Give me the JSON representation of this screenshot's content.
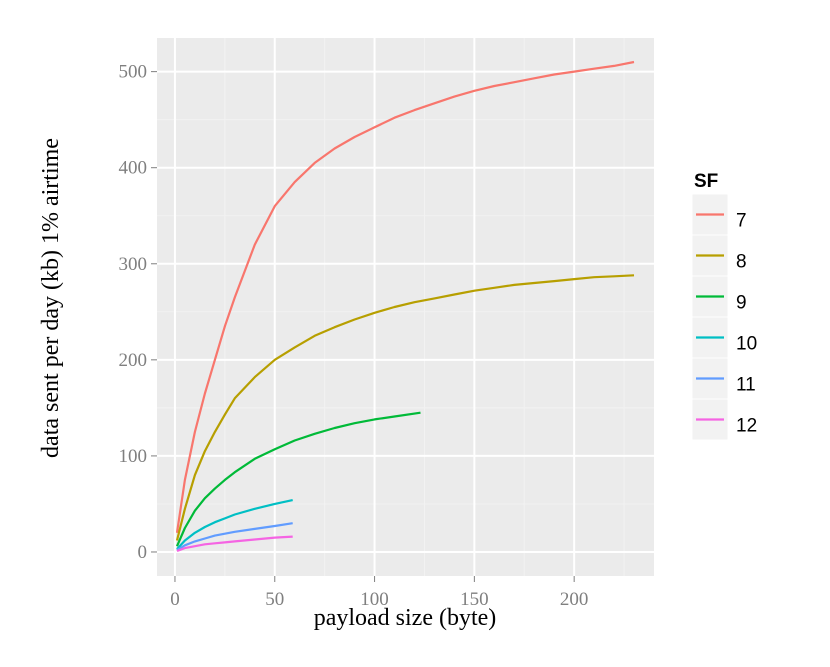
{
  "chart_data": {
    "type": "line",
    "title": "",
    "xlabel": "payload size (byte)",
    "ylabel": "data sent per day (kb) 1% airtime",
    "xlim": [
      -9,
      240
    ],
    "ylim": [
      -25,
      535
    ],
    "x_ticks": [
      0,
      50,
      100,
      150,
      200
    ],
    "y_ticks": [
      0,
      100,
      200,
      300,
      400,
      500
    ],
    "x_tick_labels": [
      "0",
      "50",
      "100",
      "150",
      "200"
    ],
    "y_tick_labels": [
      "0",
      "100",
      "200",
      "300",
      "400",
      "500"
    ],
    "grid": true,
    "legend": {
      "title": "SF",
      "position": "right"
    },
    "series": [
      {
        "name": "7",
        "color": "#F8766D",
        "x": [
          1,
          5,
          10,
          15,
          20,
          25,
          30,
          40,
          50,
          60,
          70,
          80,
          90,
          100,
          110,
          120,
          130,
          140,
          150,
          160,
          170,
          180,
          190,
          200,
          210,
          220,
          230
        ],
        "y": [
          20,
          75,
          125,
          165,
          200,
          235,
          265,
          320,
          360,
          385,
          405,
          420,
          432,
          442,
          452,
          460,
          467,
          474,
          480,
          485,
          489,
          493,
          497,
          500,
          503,
          506,
          510
        ]
      },
      {
        "name": "8",
        "color": "#B79F00",
        "x": [
          1,
          5,
          10,
          15,
          20,
          25,
          30,
          40,
          50,
          60,
          70,
          80,
          90,
          100,
          110,
          120,
          130,
          140,
          150,
          160,
          170,
          180,
          190,
          200,
          210,
          220,
          230
        ],
        "y": [
          12,
          45,
          80,
          105,
          125,
          143,
          160,
          182,
          200,
          213,
          225,
          234,
          242,
          249,
          255,
          260,
          264,
          268,
          272,
          275,
          278,
          280,
          282,
          284,
          286,
          287,
          288
        ]
      },
      {
        "name": "9",
        "color": "#00BA38",
        "x": [
          1,
          5,
          10,
          15,
          20,
          25,
          30,
          40,
          50,
          60,
          70,
          80,
          90,
          100,
          110,
          123
        ],
        "y": [
          6,
          25,
          43,
          56,
          66,
          75,
          83,
          97,
          107,
          116,
          123,
          129,
          134,
          138,
          141,
          145
        ]
      },
      {
        "name": "10",
        "color": "#00BFC4",
        "x": [
          1,
          5,
          10,
          15,
          20,
          25,
          30,
          40,
          50,
          59
        ],
        "y": [
          3,
          12,
          20,
          26,
          31,
          35,
          39,
          45,
          50,
          54
        ]
      },
      {
        "name": "11",
        "color": "#619CFF",
        "x": [
          1,
          5,
          10,
          15,
          20,
          25,
          30,
          40,
          50,
          59
        ],
        "y": [
          2,
          7,
          11,
          14,
          17,
          19,
          21,
          24,
          27,
          30
        ]
      },
      {
        "name": "12",
        "color": "#F564E3",
        "x": [
          1,
          5,
          10,
          15,
          20,
          25,
          30,
          40,
          50,
          59
        ],
        "y": [
          1,
          4,
          6,
          8,
          9,
          10,
          11,
          13,
          15,
          16
        ]
      }
    ]
  }
}
